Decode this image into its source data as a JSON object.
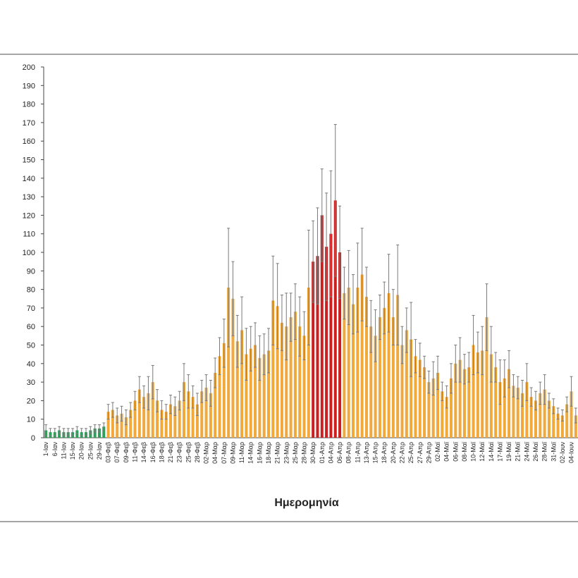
{
  "chart_data": {
    "type": "bar",
    "x_label": "Ημερομηνία",
    "categories": [
      "1-Ιαν",
      null,
      "6-Ιαν",
      null,
      "11-Ιαν",
      null,
      "15-Ιαν",
      null,
      "20-Ιαν",
      null,
      "25-Ιαν",
      null,
      "29-Ιαν",
      null,
      "03-Φεβ",
      null,
      "07-Φεβ",
      null,
      "09-Φεβ",
      null,
      "11-Φεβ",
      null,
      "14-Φεβ",
      null,
      "16-Φεβ",
      null,
      "18-Φεβ",
      null,
      "21-Φεβ",
      null,
      "23-Φεβ",
      null,
      "25-Φεβ",
      null,
      "28-Φεβ",
      null,
      "02-Μαρ",
      null,
      "04-Μαρ",
      null,
      "07-Μαρ",
      null,
      "09-Μαρ",
      null,
      "11-Μαρ",
      null,
      "14-Μαρ",
      null,
      "16-Μαρ",
      null,
      "18-Μαρ",
      null,
      "21-Μαρ",
      null,
      "23-Μαρ",
      null,
      "25-Μαρ",
      null,
      "28-Μαρ",
      null,
      "30-Μαρ",
      null,
      "01-Απρ",
      null,
      "04-Απρ",
      null,
      "06-Απρ",
      null,
      "08-Απρ",
      null,
      "11-Απρ",
      null,
      "13-Απρ",
      null,
      "15-Απρ",
      null,
      "18-Απρ",
      null,
      "20-Απρ",
      null,
      "22-Απρ",
      null,
      "25-Απρ",
      null,
      "27-Απρ",
      null,
      "29-Απρ",
      null,
      "02-Μαϊ",
      null,
      "04-Μαϊ",
      null,
      "06-Μαϊ",
      null,
      "08-Μαϊ",
      null,
      "10-Μαϊ",
      null,
      "12-Μαϊ",
      null,
      "14-Μαϊ",
      null,
      "17-Μαϊ",
      null,
      "19-Μαϊ",
      null,
      "21-Μαϊ",
      null,
      "24-Μαϊ",
      null,
      "26-Μαϊ",
      null,
      "28-Μαϊ",
      null,
      "31-Μαϊ",
      null,
      "02-Ιουν",
      null,
      "04-Ιουν",
      null
    ],
    "values": [
      4,
      3,
      3,
      4,
      3,
      3,
      3,
      4,
      3,
      3,
      4,
      5,
      5,
      6,
      14,
      15,
      12,
      13,
      11,
      15,
      20,
      26,
      22,
      24,
      30,
      20,
      15,
      14,
      18,
      17,
      20,
      30,
      25,
      22,
      18,
      25,
      27,
      24,
      35,
      44,
      51,
      81,
      75,
      52,
      58,
      45,
      48,
      50,
      43,
      45,
      47,
      74,
      71,
      62,
      60,
      65,
      68,
      60,
      55,
      81,
      95,
      98,
      120,
      103,
      110,
      128,
      100,
      78,
      81,
      72,
      81,
      88,
      76,
      60,
      55,
      65,
      70,
      78,
      65,
      77,
      50,
      58,
      53,
      44,
      42,
      38,
      30,
      32,
      35,
      25,
      22,
      32,
      40,
      42,
      37,
      38,
      50,
      46,
      47,
      65,
      45,
      38,
      30,
      32,
      37,
      28,
      27,
      24,
      30,
      22,
      20,
      24,
      26,
      20,
      17,
      13,
      12,
      18,
      25,
      12
    ],
    "errors": [
      3,
      2,
      2,
      2,
      2,
      2,
      2,
      2,
      2,
      2,
      2,
      2,
      2,
      2,
      4,
      4,
      4,
      4,
      4,
      4,
      5,
      7,
      6,
      9,
      9,
      6,
      5,
      4,
      5,
      5,
      5,
      10,
      9,
      6,
      6,
      6,
      7,
      7,
      8,
      10,
      13,
      32,
      20,
      14,
      18,
      14,
      12,
      12,
      12,
      11,
      12,
      24,
      23,
      15,
      18,
      13,
      15,
      16,
      13,
      31,
      22,
      26,
      25,
      29,
      34,
      41,
      25,
      14,
      20,
      16,
      24,
      25,
      16,
      14,
      14,
      12,
      14,
      21,
      15,
      27,
      10,
      12,
      20,
      9,
      9,
      6,
      6,
      9,
      9,
      5,
      6,
      8,
      10,
      12,
      8,
      8,
      16,
      11,
      13,
      18,
      15,
      8,
      12,
      10,
      10,
      6,
      6,
      7,
      10,
      5,
      5,
      6,
      8,
      4,
      4,
      3,
      3,
      4,
      8,
      4
    ],
    "bar_colors": [
      "#2ea05a",
      "#2ea05a",
      "#2ea05a",
      "#2ea05a",
      "#2ea05a",
      "#2ea05a",
      "#2ea05a",
      "#2ea05a",
      "#2ea05a",
      "#2ea05a",
      "#2ea05a",
      "#2ea05a",
      "#2ea05a",
      "#2ea05a",
      "#f2a93b",
      "#f2a93b",
      "#f2a93b",
      "#f2a93b",
      "#f2a93b",
      "#f2a93b",
      "#f2a93b",
      "#f2a93b",
      "#f2a93b",
      "#f2a93b",
      "#f2a93b",
      "#f2a93b",
      "#f2a93b",
      "#f2a93b",
      "#f2a93b",
      "#f2a93b",
      "#f2a93b",
      "#f2a93b",
      "#f2a93b",
      "#f2a93b",
      "#f2a93b",
      "#f2a93b",
      "#f2a93b",
      "#f2a93b",
      "#f2a93b",
      "#f2a93b",
      "#f2a93b",
      "#f2a93b",
      "#f2a93b",
      "#f2a93b",
      "#f2a93b",
      "#f2a93b",
      "#f2a93b",
      "#f2a93b",
      "#f2a93b",
      "#f2a93b",
      "#f2a93b",
      "#f2a93b",
      "#f2a93b",
      "#f2a93b",
      "#f2a93b",
      "#f2a93b",
      "#f2a93b",
      "#f2a93b",
      "#f2a93b",
      "#f2a93b",
      "#cc1f1f",
      "#cc1f1f",
      "#cc1f1f",
      "#cc1f1f",
      "#cc1f1f",
      "#cc1f1f",
      "#cc1f1f",
      "#f2a93b",
      "#f2a93b",
      "#f2a93b",
      "#f2a93b",
      "#f2a93b",
      "#f2a93b",
      "#f2a93b",
      "#f2a93b",
      "#f2a93b",
      "#f2a93b",
      "#f2a93b",
      "#f2a93b",
      "#f2a93b",
      "#f2a93b",
      "#f2a93b",
      "#f2a93b",
      "#f2a93b",
      "#f2a93b",
      "#f2a93b",
      "#f2a93b",
      "#f2a93b",
      "#f2a93b",
      "#f2a93b",
      "#f2a93b",
      "#f2a93b",
      "#f2a93b",
      "#f2a93b",
      "#f2a93b",
      "#f2a93b",
      "#f2a93b",
      "#f2a93b",
      "#f2a93b",
      "#f2a93b",
      "#f2a93b",
      "#f2a93b",
      "#f2a93b",
      "#f2a93b",
      "#f2a93b",
      "#f2a93b",
      "#f2a93b",
      "#f2a93b",
      "#f2a93b",
      "#f2a93b",
      "#f2a93b",
      "#f2a93b",
      "#f2a93b",
      "#f2a93b",
      "#f2a93b",
      "#f2a93b",
      "#f2a93b",
      "#f2a93b",
      "#f2a93b",
      "#f2a93b"
    ],
    "error_color": "#7a7a7a",
    "ylim": [
      0,
      200
    ],
    "yticks": [
      0,
      10,
      20,
      30,
      40,
      50,
      60,
      70,
      80,
      90,
      100,
      110,
      120,
      130,
      140,
      150,
      160,
      170,
      180,
      190,
      200
    ],
    "grid": false
  }
}
